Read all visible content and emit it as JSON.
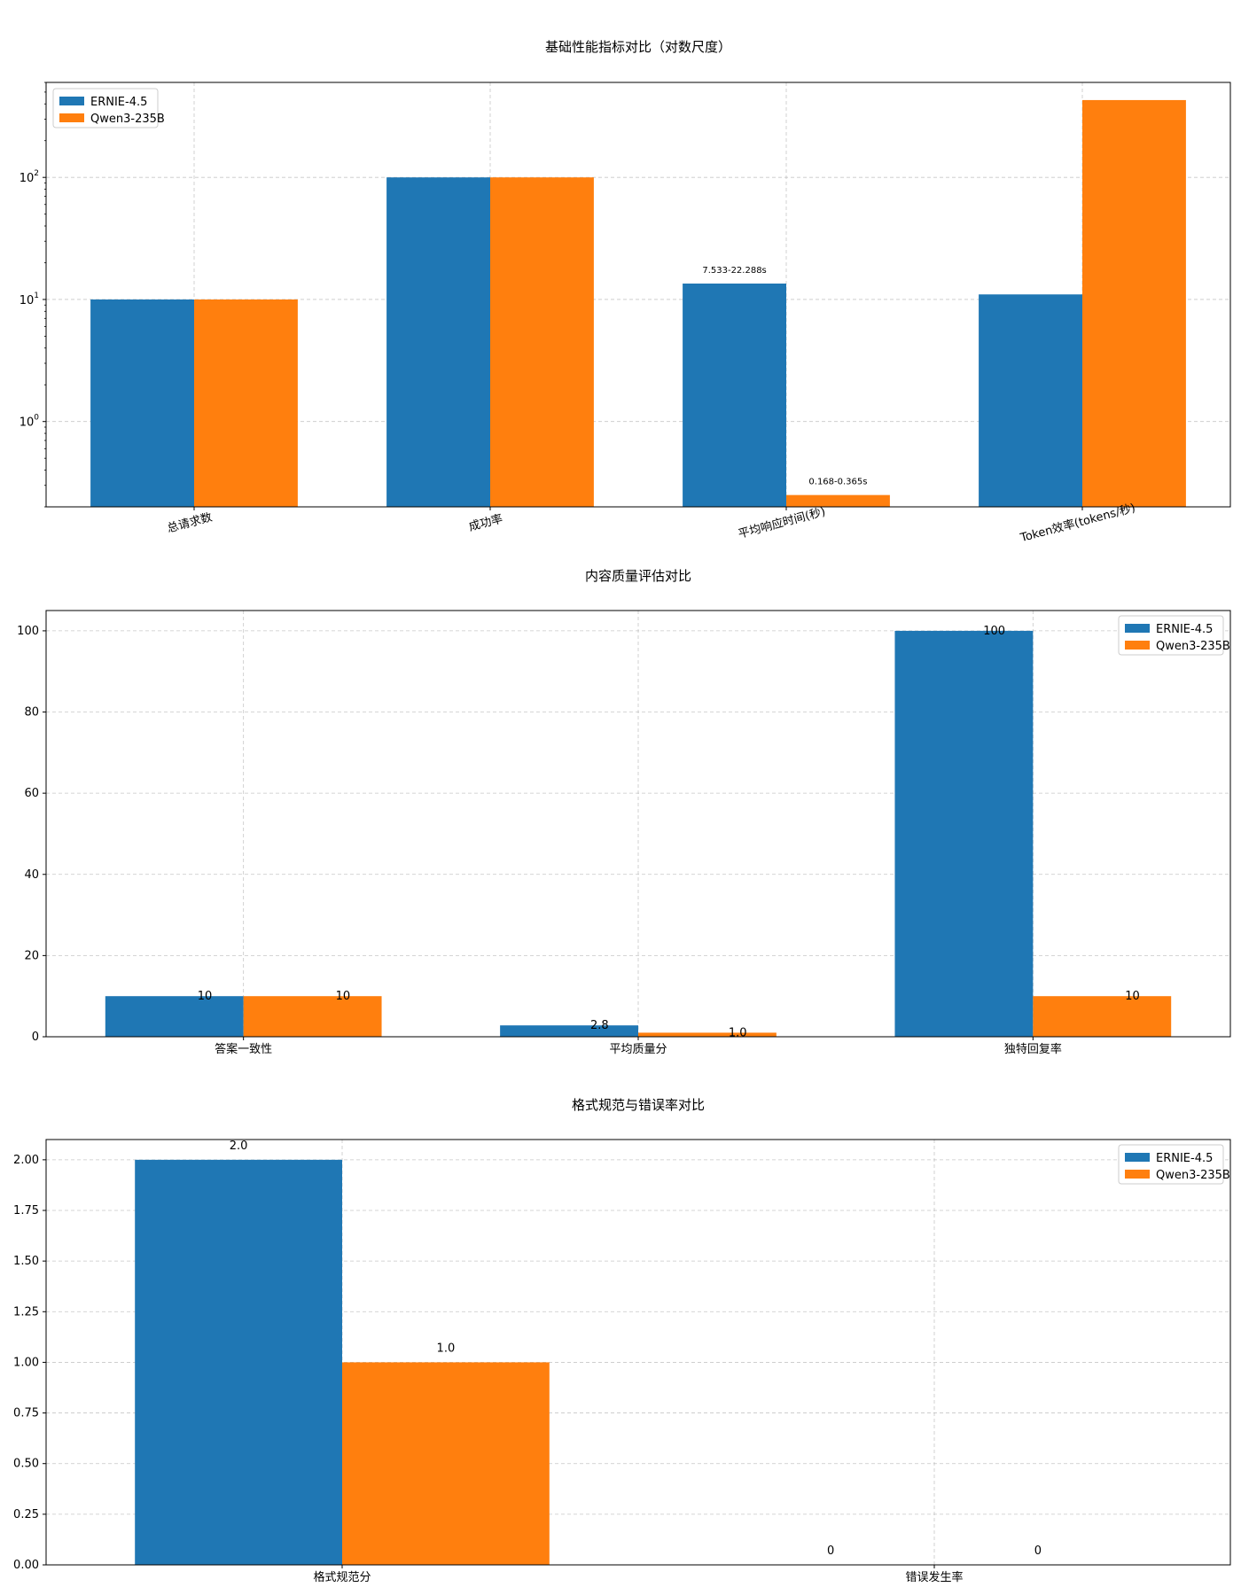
{
  "chart_data": [
    {
      "type": "bar",
      "title": "基础性能指标对比（对数尺度）",
      "xlabel": "",
      "ylabel": "",
      "yscale": "log",
      "ylim": [
        0.2,
        600
      ],
      "yticks": [
        1,
        10,
        100
      ],
      "ytick_labels": [
        {
          "base": "10",
          "exp": "0"
        },
        {
          "base": "10",
          "exp": "1"
        },
        {
          "base": "10",
          "exp": "2"
        }
      ],
      "categories": [
        "总请求数",
        "成功率",
        "平均响应时间(秒)",
        "Token效率(tokens/秒)"
      ],
      "xtick_rotation": 15,
      "series": [
        {
          "name": "ERNIE-4.5",
          "color": "#1f77b4",
          "values": [
            10,
            100,
            13.5,
            11
          ]
        },
        {
          "name": "Qwen3-235B",
          "color": "#ff7f0e",
          "values": [
            10,
            100,
            0.25,
            430
          ]
        }
      ],
      "annotations": [
        {
          "series": 0,
          "category": 2,
          "text": "7.533-22.288s"
        },
        {
          "series": 1,
          "category": 2,
          "text": "0.168-0.365s"
        }
      ],
      "legend": "top-left",
      "grid": true
    },
    {
      "type": "bar",
      "title": "内容质量评估对比",
      "xlabel": "",
      "ylabel": "",
      "ylim": [
        0,
        105
      ],
      "yticks": [
        0,
        20,
        40,
        60,
        80,
        100
      ],
      "ytick_labels": [
        "0",
        "20",
        "40",
        "60",
        "80",
        "100"
      ],
      "categories": [
        "答案一致性",
        "平均质量分",
        "独特回复率"
      ],
      "series": [
        {
          "name": "ERNIE-4.5",
          "color": "#1f77b4",
          "values": [
            10,
            2.8,
            100
          ],
          "labels": [
            "10",
            "2.8",
            "100"
          ]
        },
        {
          "name": "Qwen3-235B",
          "color": "#ff7f0e",
          "values": [
            10,
            1.0,
            10
          ],
          "labels": [
            "10",
            "1.0",
            "10"
          ]
        }
      ],
      "legend": "top-right",
      "grid": true
    },
    {
      "type": "bar",
      "title": "格式规范与错误率对比",
      "xlabel": "",
      "ylabel": "",
      "ylim": [
        0,
        2.1
      ],
      "yticks": [
        0,
        0.25,
        0.5,
        0.75,
        1.0,
        1.25,
        1.5,
        1.75,
        2.0
      ],
      "ytick_labels": [
        "0.00",
        "0.25",
        "0.50",
        "0.75",
        "1.00",
        "1.25",
        "1.50",
        "1.75",
        "2.00"
      ],
      "categories": [
        "格式规范分",
        "错误发生率"
      ],
      "series": [
        {
          "name": "ERNIE-4.5",
          "color": "#1f77b4",
          "values": [
            2.0,
            0
          ],
          "labels": [
            "2.0",
            "0"
          ]
        },
        {
          "name": "Qwen3-235B",
          "color": "#ff7f0e",
          "values": [
            1.0,
            0
          ],
          "labels": [
            "1.0",
            "0"
          ]
        }
      ],
      "legend": "top-right",
      "grid": true
    }
  ]
}
